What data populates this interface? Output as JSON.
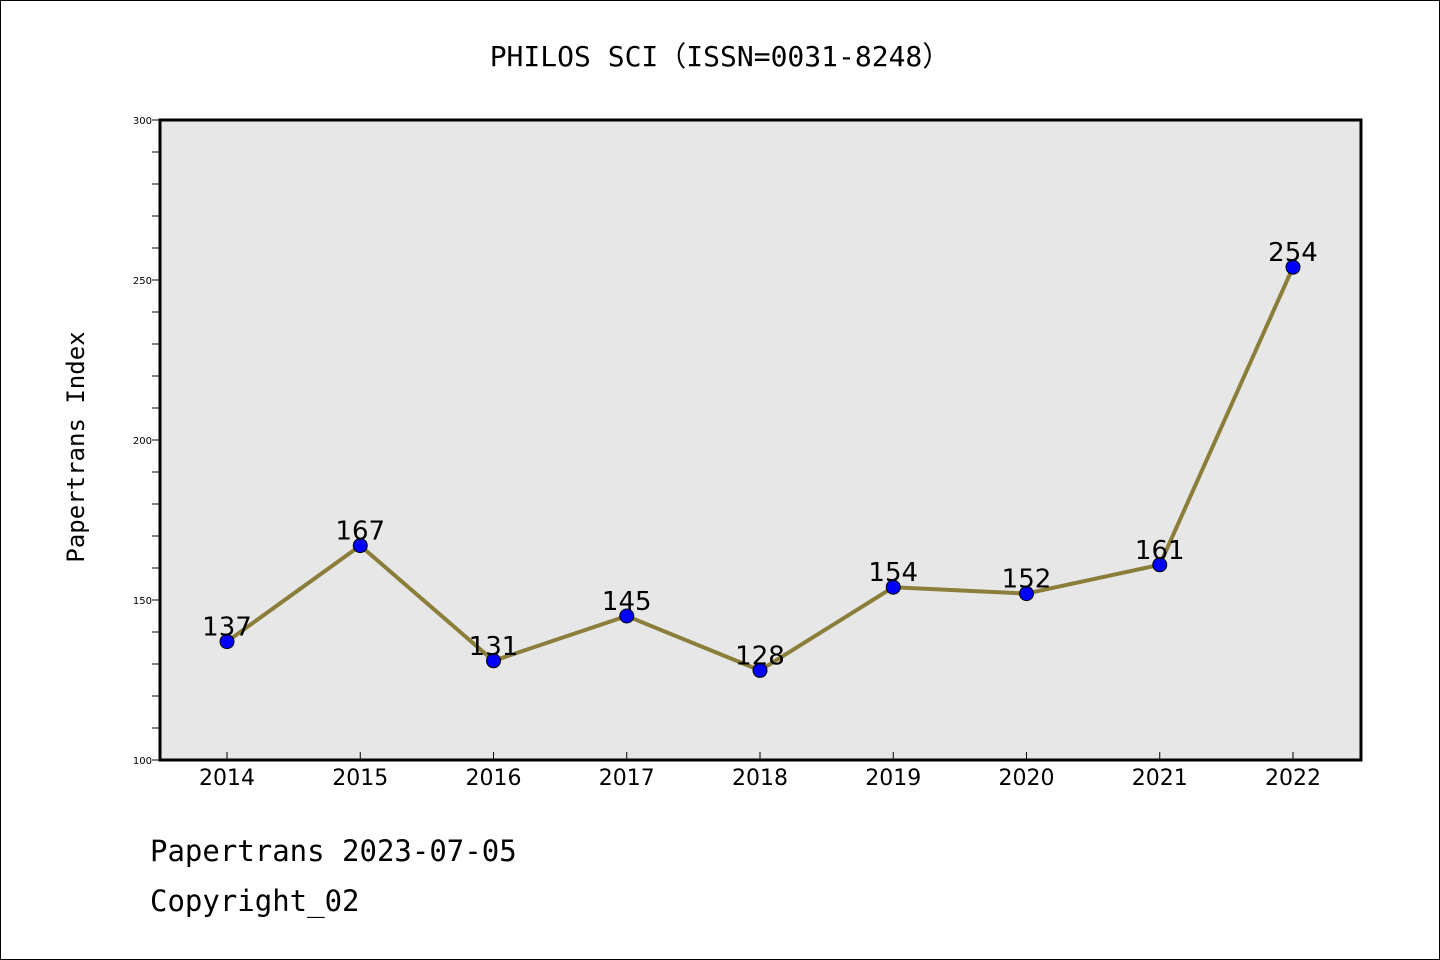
{
  "chart_data": {
    "type": "line",
    "title": "PHILOS SCI（ISSN=0031-8248）",
    "xlabel": "",
    "ylabel": "Papertrans Index",
    "categories": [
      "2014",
      "2015",
      "2016",
      "2017",
      "2018",
      "2019",
      "2020",
      "2021",
      "2022"
    ],
    "series": [
      {
        "values": [
          137,
          167,
          131,
          145,
          128,
          154,
          152,
          161,
          254
        ]
      }
    ],
    "ylim": [
      100,
      300
    ],
    "y_ticks": [
      100,
      150,
      200,
      250,
      300
    ],
    "y_minor_step": 10,
    "data_labels": true,
    "grid": false,
    "legend": "none",
    "colors": {
      "line": "#8b7d3a",
      "marker": "#0000ff",
      "plot_background": "#e7e7e7",
      "frame": "#000000"
    }
  },
  "footer": {
    "date_line": "Papertrans 2023-07-05",
    "copyright_line": "Copyright_02"
  }
}
